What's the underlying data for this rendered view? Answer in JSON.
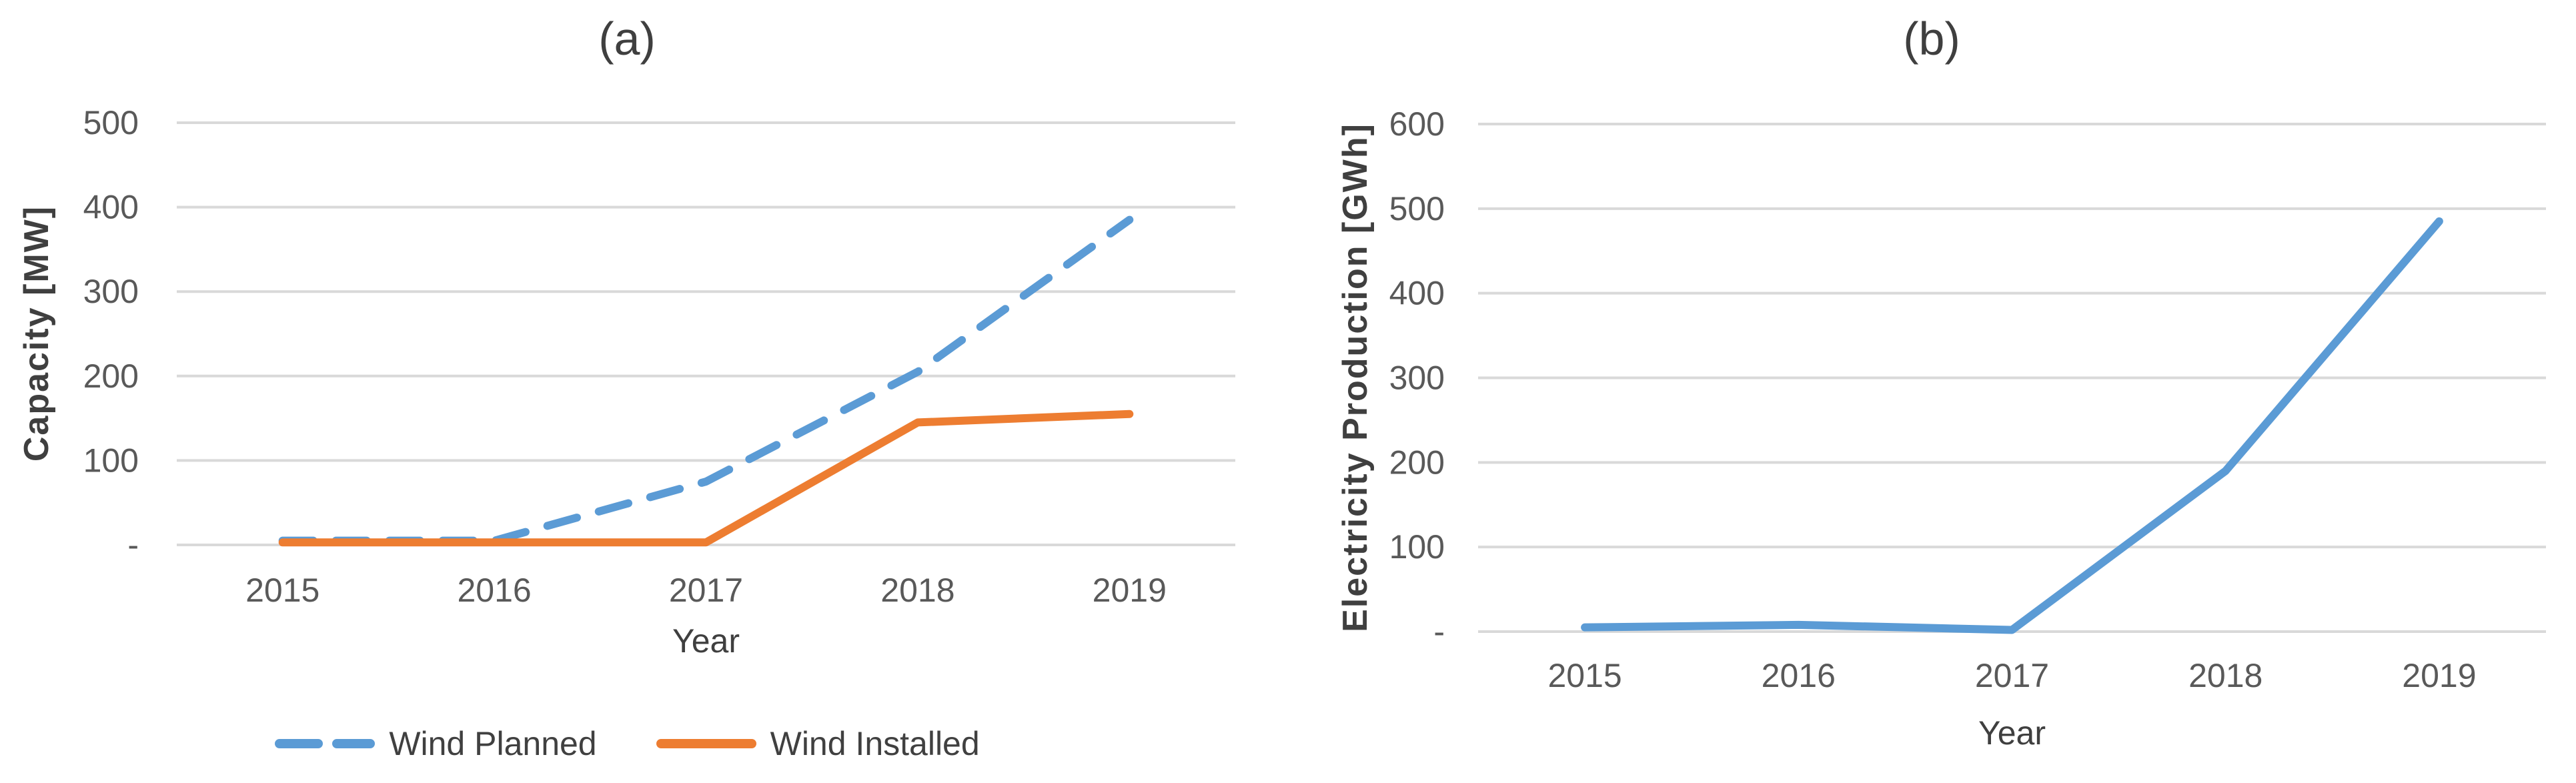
{
  "figure": {
    "background": "#ffffff"
  },
  "colors": {
    "background": "#ffffff",
    "series_blue": "#5B9BD5",
    "series_orange": "#ED7D31",
    "gridline": "#D9D9D9",
    "tick_label": "#595959",
    "axis_title": "#3F3F3F",
    "chart_title": "#3F3F3F",
    "legend_label": "#404040"
  },
  "chart_data": [
    {
      "id": "a",
      "type": "line",
      "title": "(a)",
      "xlabel": "Year",
      "ylabel": "Capacity [MW]",
      "categories": [
        "2015",
        "2016",
        "2017",
        "2018",
        "2019"
      ],
      "series": [
        {
          "name": "Wind Planned",
          "style": "dashed",
          "color": "#5B9BD5",
          "values": [
            5,
            5,
            75,
            205,
            385
          ]
        },
        {
          "name": "Wind Installed",
          "style": "solid",
          "color": "#ED7D31",
          "values": [
            3,
            3,
            3,
            145,
            155
          ]
        }
      ],
      "ylim": [
        0,
        500
      ],
      "yticks": [
        {
          "value": 0,
          "label": "-"
        },
        {
          "value": 100,
          "label": "100"
        },
        {
          "value": 200,
          "label": "200"
        },
        {
          "value": 300,
          "label": "300"
        },
        {
          "value": 400,
          "label": "400"
        },
        {
          "value": 500,
          "label": "500"
        }
      ],
      "grid": true,
      "legend": {
        "visible": true,
        "position": "bottom"
      }
    },
    {
      "id": "b",
      "type": "line",
      "title": "(b)",
      "xlabel": "Year",
      "ylabel": "Electricity Production [GWh]",
      "categories": [
        "2015",
        "2016",
        "2017",
        "2018",
        "2019"
      ],
      "series": [
        {
          "name": "",
          "style": "solid",
          "color": "#5B9BD5",
          "values": [
            5,
            8,
            2,
            190,
            485
          ]
        }
      ],
      "ylim": [
        0,
        600
      ],
      "yticks": [
        {
          "value": 0,
          "label": "-"
        },
        {
          "value": 100,
          "label": "100"
        },
        {
          "value": 200,
          "label": "200"
        },
        {
          "value": 300,
          "label": "300"
        },
        {
          "value": 400,
          "label": "400"
        },
        {
          "value": 500,
          "label": "500"
        },
        {
          "value": 600,
          "label": "600"
        }
      ],
      "grid": true,
      "legend": {
        "visible": false,
        "position": "none"
      }
    }
  ]
}
